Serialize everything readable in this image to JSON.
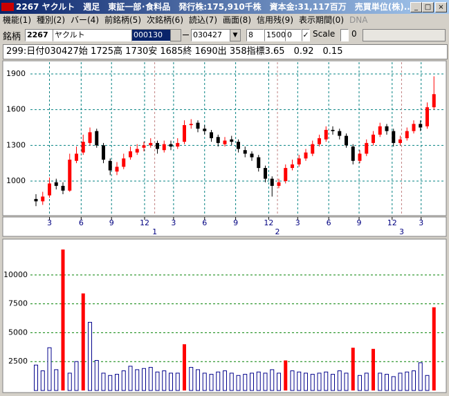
{
  "window": {
    "title": "2267 ヤクルト　週足　東証一部･食料品　発行株:175,910千株　資本金:31,117百万　売買単位(株)..."
  },
  "menu": [
    "機能(1)",
    "種別(2)",
    "バー(4)",
    "前銘柄(5)",
    "次銘柄(6)",
    "読込(7)",
    "画面(8)",
    "信用残(9)",
    "表示期間(0)",
    "DNA"
  ],
  "toolbar": {
    "label": "銘柄",
    "code": "2267",
    "name": "ヤクルト",
    "field": "000130",
    "date": "030427",
    "n1": "8",
    "n2": "1500",
    "n3": "0",
    "scale_label": "Scale",
    "check2_label": "0"
  },
  "info": "299:日付030427始 1725高 1730安 1685終 1690出 358指標3.65　0.92　0.15",
  "chart_data": [
    {
      "type": "candlestick",
      "up_color": "#ff0000",
      "down_color": "#000000",
      "grid": true,
      "grid_color": "#008080",
      "year_grid_color": "#c08080",
      "open": [
        850,
        830,
        880,
        990,
        960,
        920,
        1170,
        1240,
        1320,
        1420,
        1300,
        1170,
        1080,
        1120,
        1200,
        1240,
        1280,
        1300,
        1320,
        1260,
        1310,
        1290,
        1330,
        1470,
        1490,
        1440,
        1410,
        1370,
        1310,
        1350,
        1330,
        1260,
        1230,
        1200,
        1110,
        1020,
        960,
        1000,
        1110,
        1140,
        1190,
        1230,
        1310,
        1350,
        1430,
        1420,
        1380,
        1290,
        1170,
        1230,
        1320,
        1390,
        1460,
        1420,
        1320,
        1360,
        1420,
        1480,
        1460,
        1620
      ],
      "high": [
        890,
        910,
        1030,
        1020,
        990,
        1230,
        1290,
        1390,
        1450,
        1440,
        1320,
        1190,
        1160,
        1230,
        1290,
        1310,
        1330,
        1360,
        1340,
        1340,
        1340,
        1360,
        1510,
        1520,
        1510,
        1470,
        1430,
        1390,
        1370,
        1380,
        1350,
        1290,
        1250,
        1220,
        1130,
        1040,
        1020,
        1140,
        1180,
        1220,
        1270,
        1340,
        1390,
        1460,
        1460,
        1440,
        1400,
        1310,
        1260,
        1350,
        1420,
        1490,
        1480,
        1440,
        1380,
        1450,
        1510,
        1510,
        1660,
        1880
      ],
      "low": [
        790,
        800,
        860,
        930,
        890,
        910,
        1150,
        1220,
        1300,
        1280,
        1150,
        1050,
        1050,
        1100,
        1180,
        1220,
        1250,
        1280,
        1230,
        1240,
        1260,
        1270,
        1310,
        1440,
        1410,
        1390,
        1330,
        1290,
        1290,
        1300,
        1240,
        1200,
        1170,
        1080,
        990,
        870,
        940,
        980,
        1090,
        1120,
        1170,
        1210,
        1290,
        1330,
        1390,
        1350,
        1280,
        1140,
        1150,
        1210,
        1300,
        1370,
        1390,
        1290,
        1300,
        1340,
        1400,
        1420,
        1440,
        1600
      ],
      "close": [
        830,
        870,
        980,
        960,
        920,
        1180,
        1230,
        1330,
        1410,
        1300,
        1180,
        1090,
        1120,
        1190,
        1250,
        1270,
        1300,
        1320,
        1270,
        1310,
        1290,
        1320,
        1470,
        1480,
        1440,
        1420,
        1360,
        1320,
        1340,
        1330,
        1270,
        1230,
        1200,
        1110,
        1020,
        960,
        990,
        1110,
        1140,
        1190,
        1240,
        1310,
        1360,
        1430,
        1420,
        1380,
        1300,
        1170,
        1230,
        1320,
        1390,
        1460,
        1420,
        1320,
        1350,
        1420,
        1480,
        1450,
        1620,
        1730
      ],
      "ylim": [
        710,
        2010
      ],
      "yticks": [
        1000,
        1300,
        1600,
        1900
      ],
      "xticks": [
        {
          "value": 2,
          "label": "3"
        },
        {
          "value": 6.7,
          "label": "6"
        },
        {
          "value": 11.2,
          "label": "9"
        },
        {
          "value": 16.1,
          "label": "12"
        },
        {
          "value": 20.4,
          "label": "3"
        },
        {
          "value": 25,
          "label": "6"
        },
        {
          "value": 29.6,
          "label": "9"
        },
        {
          "value": 34.5,
          "label": "12"
        },
        {
          "value": 38.8,
          "label": "3"
        },
        {
          "value": 43.4,
          "label": "6"
        },
        {
          "value": 47.9,
          "label": "9"
        },
        {
          "value": 52.8,
          "label": "12"
        },
        {
          "value": 57.1,
          "label": "3"
        }
      ],
      "year_ticks": [
        {
          "value": 17.6,
          "label": "1"
        },
        {
          "value": 35.8,
          "label": "2"
        },
        {
          "value": 54.2,
          "label": "3"
        }
      ]
    },
    {
      "type": "bar",
      "grid": true,
      "grid_color": "#008000",
      "ylim": [
        0,
        13100
      ],
      "yticks": [
        2500,
        5000,
        7500,
        10000
      ],
      "series": [
        {
          "color": "#00008b",
          "filled": false,
          "values": [
            2200,
            1700,
            3700,
            1800,
            null,
            1500,
            2500,
            null,
            5900,
            2600,
            1500,
            1300,
            1400,
            1700,
            2100,
            1800,
            1900,
            2000,
            1600,
            1700,
            1500,
            1500,
            null,
            2000,
            1800,
            1500,
            1400,
            1600,
            1700,
            1500,
            1300,
            1400,
            1500,
            1600,
            1500,
            1800,
            1500,
            null,
            1700,
            1600,
            1500,
            1400,
            1500,
            1600,
            1400,
            1700,
            1500,
            null,
            1300,
            1500,
            null,
            1500,
            1400,
            1200,
            1500,
            1600,
            1700,
            2400,
            1300,
            null
          ]
        },
        {
          "color": "#ff0000",
          "filled": true,
          "values": [
            null,
            null,
            null,
            null,
            12200,
            null,
            null,
            8400,
            null,
            null,
            null,
            null,
            null,
            null,
            null,
            null,
            null,
            null,
            null,
            null,
            null,
            null,
            4000,
            null,
            null,
            null,
            null,
            null,
            null,
            null,
            null,
            null,
            null,
            null,
            null,
            null,
            null,
            2600,
            null,
            null,
            null,
            null,
            null,
            null,
            null,
            null,
            null,
            3700,
            null,
            null,
            3600,
            null,
            null,
            null,
            null,
            null,
            null,
            null,
            null,
            7200
          ]
        }
      ]
    }
  ]
}
